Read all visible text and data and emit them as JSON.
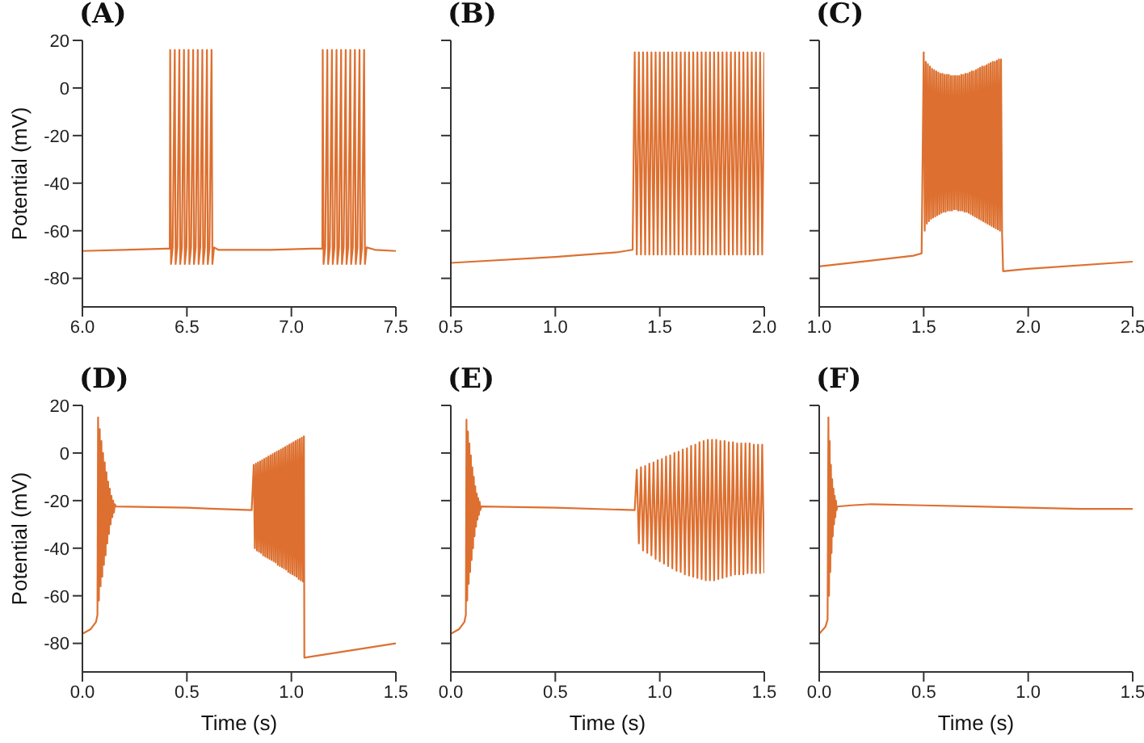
{
  "chart_data": [
    {
      "type": "line",
      "title": "(A)",
      "ylabel": "Potential (mV)",
      "xlim": [
        6.0,
        7.5
      ],
      "xticks": [
        {
          "value": 6.0,
          "label": "6.0"
        },
        {
          "value": 6.5,
          "label": "6.5"
        },
        {
          "value": 7.0,
          "label": "7.0"
        },
        {
          "value": 7.5,
          "label": "7.5"
        }
      ],
      "ylim": [
        -92,
        20
      ],
      "yticks": [
        -80,
        -60,
        -40,
        -20,
        0,
        20
      ],
      "series": [
        {
          "color": "#dd7030",
          "x": [
            6.0,
            6.2,
            6.4,
            6.418,
            6.42,
            6.424,
            6.432,
            6.442,
            6.446,
            6.454,
            6.464,
            6.468,
            6.476,
            6.486,
            6.49,
            6.498,
            6.508,
            6.512,
            6.52,
            6.53,
            6.534,
            6.542,
            6.552,
            6.556,
            6.564,
            6.574,
            6.578,
            6.586,
            6.596,
            6.6,
            6.608,
            6.618,
            6.622,
            6.63,
            6.65,
            6.9,
            7.1,
            7.148,
            7.15,
            7.154,
            7.162,
            7.172,
            7.176,
            7.184,
            7.194,
            7.198,
            7.206,
            7.216,
            7.22,
            7.228,
            7.238,
            7.242,
            7.25,
            7.26,
            7.264,
            7.272,
            7.282,
            7.286,
            7.294,
            7.304,
            7.308,
            7.316,
            7.326,
            7.33,
            7.338,
            7.348,
            7.352,
            7.36,
            7.4,
            7.5
          ],
          "values": [
            -68.5,
            -68,
            -67.5,
            -67.5,
            16,
            -74,
            -67,
            16,
            -74,
            -67,
            16,
            -74,
            -67,
            16,
            -74,
            -67,
            16,
            -74,
            -67,
            16,
            -74,
            -67,
            16,
            -74,
            -67,
            16,
            -74,
            -67,
            16,
            -74,
            -67,
            16,
            -74,
            -67,
            -68,
            -68,
            -67.5,
            -67.5,
            16,
            -74,
            -67,
            16,
            -74,
            -67,
            16,
            -74,
            -67,
            16,
            -74,
            -67,
            16,
            -74,
            -67,
            16,
            -74,
            -67,
            16,
            -74,
            -67,
            16,
            -74,
            -67,
            16,
            -74,
            -67,
            16,
            -74,
            -67,
            -68,
            -68.5
          ]
        }
      ]
    },
    {
      "type": "line",
      "title": "(B)",
      "tick_labels": "x",
      "xlim": [
        0.5,
        2.0
      ],
      "xticks": [
        {
          "value": 0.5,
          "label": "0.5"
        },
        {
          "value": 1.0,
          "label": "1.0"
        },
        {
          "value": 1.5,
          "label": "1.5"
        },
        {
          "value": 2.0,
          "label": "2.0"
        }
      ],
      "ylim": [
        -92,
        20
      ],
      "yticks": [
        -80,
        -60,
        -40,
        -20,
        0,
        20
      ],
      "series": [
        {
          "color": "#dd7030",
          "x": [
            0.5,
            1.0,
            1.3,
            1.37,
            1.38,
            1.39,
            1.4,
            1.41,
            1.42,
            1.43,
            1.44,
            1.45,
            1.46,
            1.47,
            1.48,
            1.49,
            1.5,
            1.51,
            1.52,
            1.53,
            1.54,
            1.55,
            1.56,
            1.57,
            1.58,
            1.59,
            1.6,
            1.61,
            1.62,
            1.63,
            1.64,
            1.65,
            1.66,
            1.67,
            1.68,
            1.69,
            1.7,
            1.71,
            1.72,
            1.73,
            1.74,
            1.75,
            1.76,
            1.77,
            1.78,
            1.79,
            1.8,
            1.81,
            1.82,
            1.83,
            1.84,
            1.85,
            1.86,
            1.87,
            1.88,
            1.89,
            1.9,
            1.91,
            1.92,
            1.93,
            1.94,
            1.95,
            1.96,
            1.97,
            1.98,
            1.99,
            2.0
          ],
          "values": [
            -73.5,
            -71,
            -69,
            -68,
            15,
            -70,
            15,
            -70,
            15,
            -70,
            15,
            -70,
            15,
            -70,
            15,
            -70,
            15,
            -70,
            15,
            -70,
            15,
            -70,
            15,
            -70,
            15,
            -70,
            15,
            -70,
            15,
            -70,
            15,
            -70,
            15,
            -70,
            15,
            -70,
            15,
            -70,
            15,
            -70,
            15,
            -70,
            15,
            -70,
            15,
            -70,
            15,
            -70,
            15,
            -70,
            15,
            -70,
            15,
            -70,
            15,
            -70,
            15,
            -70,
            15,
            -70,
            15,
            -70,
            15,
            -70,
            15,
            -70,
            15
          ]
        }
      ]
    },
    {
      "type": "line",
      "title": "(C)",
      "tick_labels": "x",
      "xlim": [
        1.0,
        2.5
      ],
      "xticks": [
        {
          "value": 1.0,
          "label": "1.0"
        },
        {
          "value": 1.5,
          "label": "1.5"
        },
        {
          "value": 2.0,
          "label": "2.0"
        },
        {
          "value": 2.5,
          "label": "2.5"
        }
      ],
      "ylim": [
        -92,
        20
      ],
      "yticks": [
        -80,
        -60,
        -40,
        -20,
        0,
        20
      ],
      "series": [
        {
          "color": "#dd7030",
          "x": [
            1.0,
            1.25,
            1.45,
            1.49,
            1.5,
            1.505,
            1.51,
            1.515,
            1.52,
            1.525,
            1.53,
            1.535,
            1.54,
            1.545,
            1.55,
            1.555,
            1.56,
            1.565,
            1.57,
            1.575,
            1.58,
            1.585,
            1.59,
            1.595,
            1.6,
            1.605,
            1.61,
            1.615,
            1.62,
            1.625,
            1.63,
            1.635,
            1.64,
            1.645,
            1.65,
            1.655,
            1.66,
            1.665,
            1.67,
            1.675,
            1.68,
            1.685,
            1.69,
            1.695,
            1.7,
            1.705,
            1.71,
            1.715,
            1.72,
            1.725,
            1.73,
            1.735,
            1.74,
            1.745,
            1.75,
            1.755,
            1.76,
            1.765,
            1.77,
            1.775,
            1.78,
            1.785,
            1.79,
            1.795,
            1.8,
            1.805,
            1.81,
            1.815,
            1.82,
            1.825,
            1.83,
            1.835,
            1.84,
            1.845,
            1.85,
            1.855,
            1.86,
            1.865,
            1.87,
            1.875,
            1.88,
            2.0,
            2.5
          ],
          "values": [
            -75,
            -72.5,
            -70.5,
            -69.5,
            15,
            -60,
            11,
            -57,
            10,
            -56,
            9,
            -55,
            8,
            -54.5,
            7.5,
            -54,
            7,
            -53.5,
            6.5,
            -53,
            6,
            -52.5,
            6,
            -52,
            5.5,
            -52,
            5.5,
            -51.5,
            5.5,
            -51.5,
            5,
            -51.5,
            5,
            -51,
            5,
            -51,
            5,
            -51.5,
            5,
            -51.5,
            5.5,
            -51.5,
            5.5,
            -52,
            6,
            -52,
            6,
            -52.5,
            6.5,
            -53,
            7,
            -53.5,
            7,
            -54,
            7.5,
            -54.5,
            8,
            -55,
            8.5,
            -55.5,
            9,
            -56,
            9,
            -56.5,
            9.5,
            -57,
            10,
            -57.5,
            10.5,
            -58,
            11,
            -58.5,
            11,
            -59,
            11.5,
            -59.5,
            12,
            -60,
            12,
            -61,
            -77,
            -76,
            -73
          ]
        }
      ]
    },
    {
      "type": "line",
      "title": "(D)",
      "xlabel": "Time (s)",
      "ylabel": "Potential (mV)",
      "xlim": [
        0,
        1.5
      ],
      "xticks": [
        {
          "value": 0,
          "label": "0.0"
        },
        {
          "value": 0.5,
          "label": "0.5"
        },
        {
          "value": 1.0,
          "label": "1.0"
        },
        {
          "value": 1.5,
          "label": "1.5"
        }
      ],
      "ylim": [
        -92,
        20
      ],
      "yticks": [
        -80,
        -60,
        -40,
        -20,
        0,
        20
      ],
      "series": [
        {
          "color": "#dd7030",
          "x": [
            0,
            0.04,
            0.065,
            0.072,
            0.075,
            0.079,
            0.083,
            0.087,
            0.091,
            0.095,
            0.099,
            0.103,
            0.107,
            0.111,
            0.115,
            0.119,
            0.123,
            0.127,
            0.131,
            0.135,
            0.139,
            0.143,
            0.147,
            0.151,
            0.155,
            0.16,
            0.5,
            0.81,
            0.82,
            0.825,
            0.83,
            0.835,
            0.84,
            0.845,
            0.85,
            0.855,
            0.86,
            0.865,
            0.87,
            0.875,
            0.88,
            0.885,
            0.89,
            0.895,
            0.9,
            0.905,
            0.91,
            0.915,
            0.92,
            0.925,
            0.93,
            0.935,
            0.94,
            0.945,
            0.95,
            0.955,
            0.96,
            0.965,
            0.97,
            0.975,
            0.98,
            0.985,
            0.99,
            0.995,
            1.0,
            1.005,
            1.01,
            1.015,
            1.02,
            1.025,
            1.03,
            1.035,
            1.04,
            1.045,
            1.05,
            1.055,
            1.06,
            1.062,
            1.5
          ],
          "values": [
            -76,
            -74,
            -71,
            -68,
            15,
            -62,
            10,
            -56,
            5,
            -52,
            0,
            -47,
            -4,
            -43,
            -8,
            -38,
            -12,
            -34,
            -15,
            -30,
            -18,
            -27,
            -20,
            -25,
            -21.5,
            -22.5,
            -23,
            -24,
            -5,
            -40,
            -4.5,
            -41,
            -4,
            -41.5,
            -3.5,
            -42,
            -3,
            -43,
            -2.5,
            -43.5,
            -2,
            -44,
            -1.5,
            -44.5,
            -1,
            -45,
            -0.5,
            -45.5,
            0,
            -46,
            0.5,
            -47,
            1,
            -47.5,
            1.5,
            -48,
            2,
            -48.5,
            2.5,
            -49,
            3,
            -50,
            3.5,
            -50.5,
            4,
            -51,
            4.5,
            -51.5,
            5,
            -52,
            5.5,
            -53,
            6,
            -53.5,
            6.5,
            -54,
            7,
            -86,
            -80
          ]
        }
      ]
    },
    {
      "type": "line",
      "title": "(E)",
      "xlabel": "Time (s)",
      "tick_labels": "x",
      "xlim": [
        0,
        1.5
      ],
      "xticks": [
        {
          "value": 0,
          "label": "0.0"
        },
        {
          "value": 0.5,
          "label": "0.5"
        },
        {
          "value": 1.0,
          "label": "1.0"
        },
        {
          "value": 1.5,
          "label": "1.5"
        }
      ],
      "ylim": [
        -92,
        20
      ],
      "yticks": [
        -80,
        -60,
        -40,
        -20,
        0,
        20
      ],
      "series": [
        {
          "color": "#dd7030",
          "x": [
            0,
            0.04,
            0.065,
            0.072,
            0.075,
            0.0785,
            0.082,
            0.0855,
            0.089,
            0.0925,
            0.096,
            0.0995,
            0.103,
            0.1065,
            0.11,
            0.1135,
            0.117,
            0.1205,
            0.124,
            0.1275,
            0.131,
            0.1345,
            0.138,
            0.1415,
            0.145,
            0.5,
            0.88,
            0.89,
            0.9,
            0.91,
            0.92,
            0.93,
            0.94,
            0.95,
            0.96,
            0.97,
            0.98,
            0.99,
            1.0,
            1.01,
            1.02,
            1.03,
            1.04,
            1.05,
            1.06,
            1.07,
            1.08,
            1.09,
            1.1,
            1.11,
            1.12,
            1.13,
            1.14,
            1.15,
            1.16,
            1.17,
            1.18,
            1.19,
            1.2,
            1.21,
            1.22,
            1.23,
            1.24,
            1.25,
            1.26,
            1.27,
            1.28,
            1.29,
            1.3,
            1.31,
            1.32,
            1.33,
            1.34,
            1.35,
            1.36,
            1.37,
            1.38,
            1.39,
            1.4,
            1.41,
            1.42,
            1.43,
            1.44,
            1.45,
            1.46,
            1.47,
            1.48,
            1.49,
            1.5
          ],
          "values": [
            -76,
            -74,
            -71,
            -68,
            14,
            -62,
            9,
            -55,
            4,
            -50,
            -1,
            -45,
            -6,
            -40,
            -10,
            -35,
            -14,
            -31,
            -17,
            -28,
            -19,
            -26,
            -20.5,
            -24,
            -22.5,
            -23,
            -24,
            -7,
            -38,
            -6,
            -41,
            -5.5,
            -42,
            -4.5,
            -43,
            -4,
            -44.5,
            -3,
            -45.5,
            -2.5,
            -46.5,
            -1.5,
            -47.5,
            -1,
            -48.5,
            0,
            -49.5,
            0.5,
            -50,
            1.5,
            -51,
            2,
            -51.5,
            3,
            -52,
            3.5,
            -52.5,
            4.5,
            -53,
            5,
            -53.5,
            5.5,
            -53.5,
            5.5,
            -53.5,
            5.5,
            -53,
            5,
            -52.5,
            5,
            -52,
            4.5,
            -51.5,
            4.5,
            -51,
            4,
            -51,
            4,
            -51,
            4,
            -50.5,
            4,
            -50.5,
            3.5,
            -50.5,
            3.5,
            -50.5,
            3.5,
            -50.5
          ]
        }
      ]
    },
    {
      "type": "line",
      "title": "(F)",
      "xlabel": "Time (s)",
      "tick_labels": "x",
      "xlim": [
        0,
        1.5
      ],
      "xticks": [
        {
          "value": 0,
          "label": "0.0"
        },
        {
          "value": 0.5,
          "label": "0.5"
        },
        {
          "value": 1.0,
          "label": "1.0"
        },
        {
          "value": 1.5,
          "label": "1.5"
        }
      ],
      "ylim": [
        -92,
        20
      ],
      "yticks": [
        -80,
        -60,
        -40,
        -20,
        0,
        20
      ],
      "series": [
        {
          "color": "#dd7030",
          "x": [
            0,
            0.03,
            0.04,
            0.044,
            0.047,
            0.05,
            0.053,
            0.056,
            0.059,
            0.062,
            0.065,
            0.068,
            0.071,
            0.074,
            0.077,
            0.08,
            0.083,
            0.086,
            0.15,
            0.25,
            0.5,
            0.75,
            1.0,
            1.25,
            1.5
          ],
          "values": [
            -76,
            -73,
            -70,
            15,
            -60,
            5,
            -50,
            -5,
            -42,
            -11,
            -35,
            -15,
            -30,
            -18,
            -27,
            -20,
            -24,
            -22.5,
            -22,
            -21.5,
            -22,
            -22.5,
            -23,
            -23.5,
            -23.5
          ]
        }
      ]
    }
  ]
}
